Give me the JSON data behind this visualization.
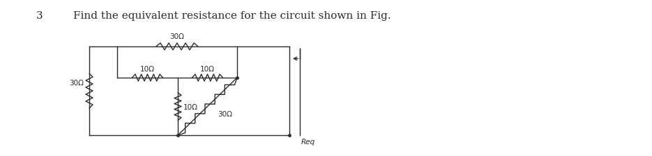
{
  "title_num": "3",
  "title_text": "Find the equivalent resistance for the circuit shown in Fig.",
  "title_fontsize": 11,
  "bg_color": "#ffffff",
  "line_color": "#2a2a2a",
  "label_30ohm_left": "30Ω",
  "label_30ohm_top": "30Ω",
  "label_10ohm_h1": "10Ω",
  "label_10ohm_h2": "10Ω",
  "label_10ohm_v": "10Ω",
  "label_30ohm_diag": "30Ω",
  "label_req": "Req",
  "fig_width": 9.35,
  "fig_height": 2.26,
  "dpi": 100
}
